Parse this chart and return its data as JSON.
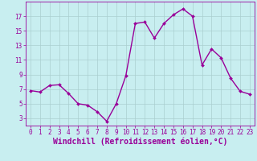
{
  "x": [
    0,
    1,
    2,
    3,
    4,
    5,
    6,
    7,
    8,
    9,
    10,
    11,
    12,
    13,
    14,
    15,
    16,
    17,
    18,
    19,
    20,
    21,
    22,
    23
  ],
  "y": [
    6.8,
    6.6,
    7.5,
    7.6,
    6.4,
    5.0,
    4.8,
    3.9,
    2.6,
    5.0,
    8.8,
    16.0,
    16.2,
    14.0,
    16.0,
    17.2,
    18.0,
    17.0,
    10.3,
    12.5,
    11.3,
    8.5,
    6.7,
    6.3
  ],
  "line_color": "#990099",
  "marker_color": "#990099",
  "bg_color": "#c8eef0",
  "grid_color": "#aacfcf",
  "axis_color": "#990099",
  "xlabel": "Windchill (Refroidissement éolien,°C)",
  "xlabel_fontsize": 7,
  "ylim": [
    2,
    19
  ],
  "xlim": [
    -0.5,
    23.5
  ],
  "yticks": [
    3,
    5,
    7,
    9,
    11,
    13,
    15,
    17
  ],
  "xticks": [
    0,
    1,
    2,
    3,
    4,
    5,
    6,
    7,
    8,
    9,
    10,
    11,
    12,
    13,
    14,
    15,
    16,
    17,
    18,
    19,
    20,
    21,
    22,
    23
  ],
  "tick_fontsize": 5.5,
  "linewidth": 1.0,
  "markersize": 2.0
}
